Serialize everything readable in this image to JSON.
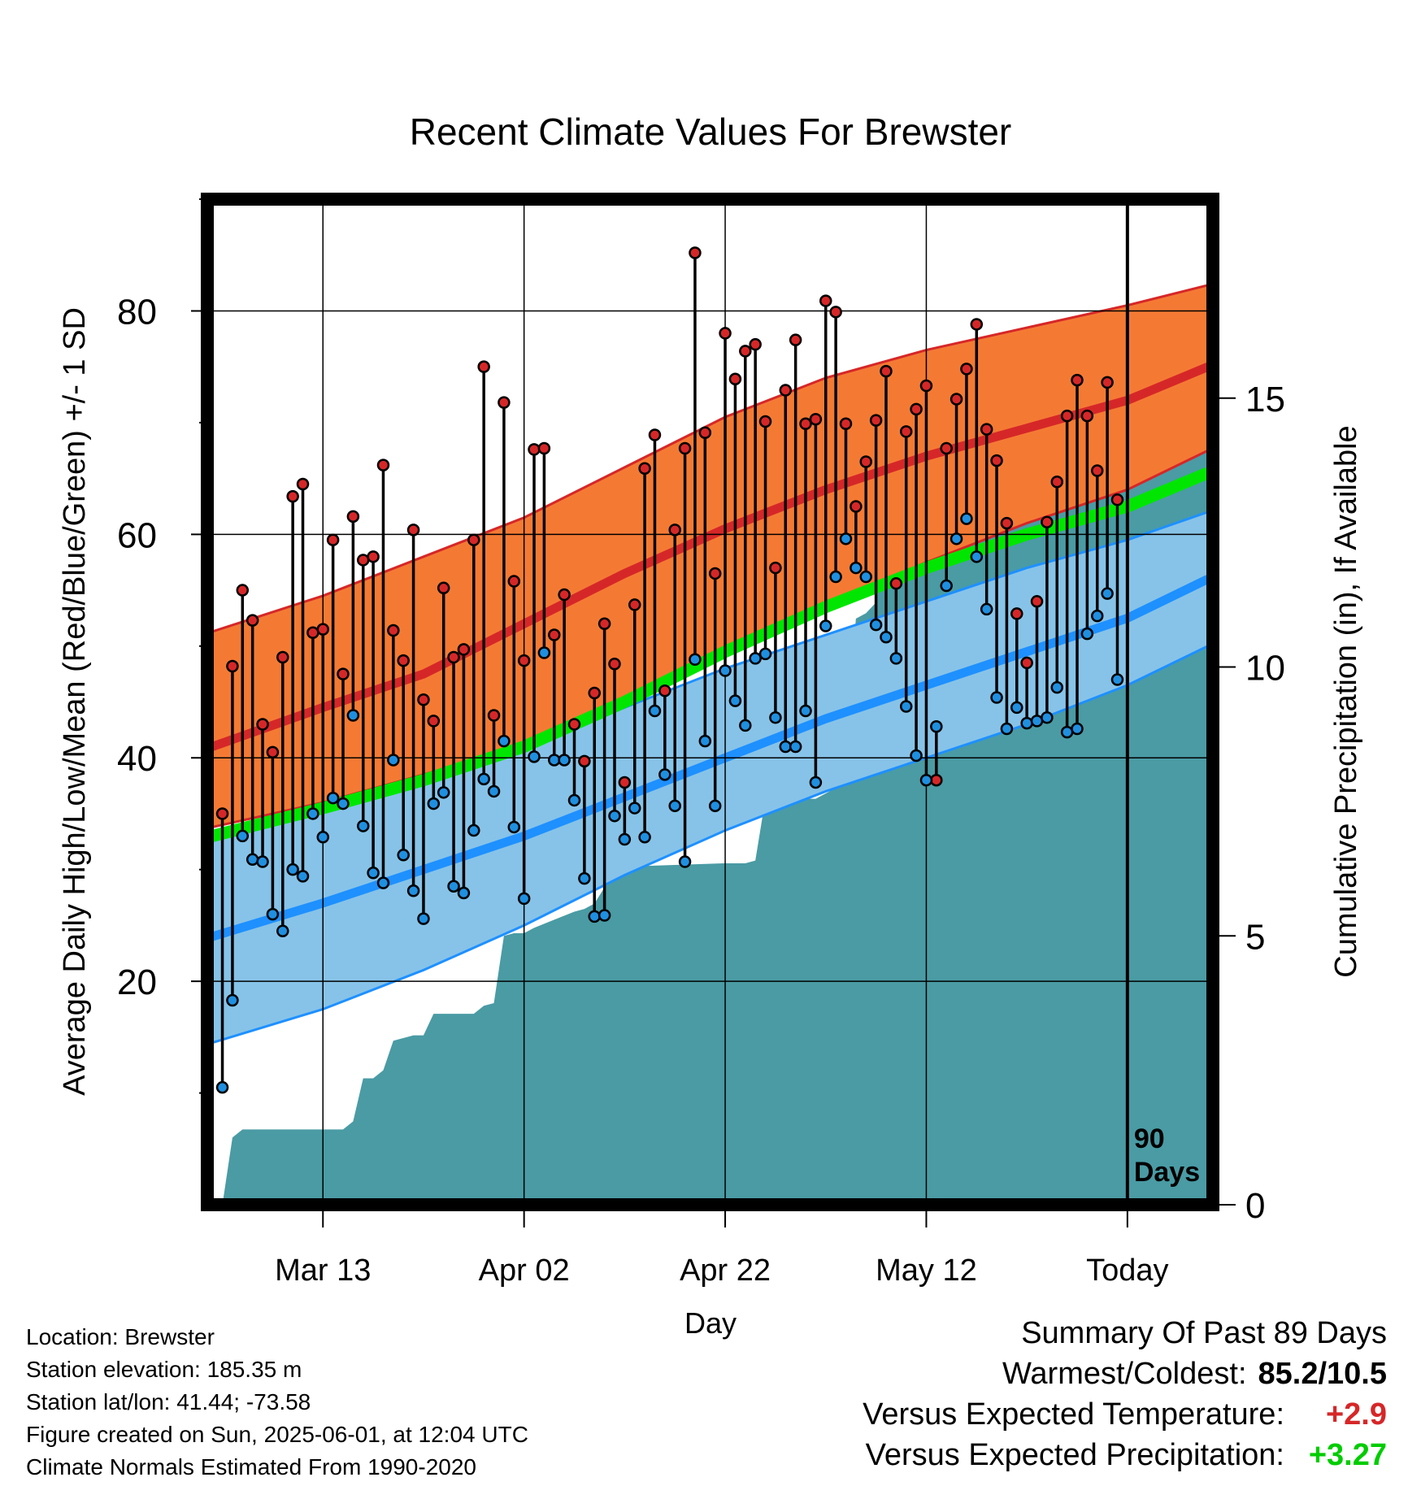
{
  "chart_data": {
    "type": "line",
    "title": "Recent Climate Values For Brewster",
    "xlabel": "Day",
    "ylabel_left": "Average Daily High/Low/Mean (Red/Blue/Green) +/- 1 SD",
    "ylabel_right": "Cumulative Precipitation (in), If Available",
    "x_tick_labels": [
      "Mar 13",
      "Apr 02",
      "Apr 22",
      "May 12",
      "Today"
    ],
    "x_tick_day_index": [
      10,
      30,
      50,
      70,
      90
    ],
    "today_day_index": 90,
    "x_range_day_index": [
      -1.5,
      98.5
    ],
    "left_ylim": [
      0,
      90
    ],
    "left_ticks": [
      20,
      40,
      60,
      80
    ],
    "right_ylim": [
      0,
      18.7
    ],
    "right_ticks": [
      0,
      5,
      10,
      15
    ],
    "today_label": [
      "90",
      "Days"
    ],
    "grid": true,
    "normals": {
      "day_index": [
        -1,
        10,
        20,
        30,
        40,
        50,
        60,
        70,
        80,
        90,
        98
      ],
      "high_mean": [
        41,
        44.5,
        47.5,
        52,
        56.5,
        60.5,
        64,
        67,
        69.5,
        72,
        75
      ],
      "high_plus_sd": [
        51.3,
        54.5,
        58,
        61.5,
        66,
        70.5,
        74,
        76.5,
        78.5,
        80.5,
        82.3
      ],
      "high_minus_sd": [
        33.8,
        36,
        38.5,
        41,
        45,
        49.5,
        53.5,
        57.5,
        61,
        64,
        67.5
      ],
      "mean": [
        33,
        35.5,
        38,
        41,
        45,
        49.5,
        53.5,
        57,
        60,
        62.5,
        65.5
      ],
      "low_mean": [
        24,
        27,
        30,
        33,
        36.5,
        40,
        43.5,
        46.5,
        49.5,
        52.5,
        56
      ],
      "low_plus_sd": [
        33,
        36,
        38.5,
        41,
        44.5,
        48,
        51,
        54,
        57,
        59.5,
        62
      ],
      "low_minus_sd": [
        14.5,
        17.5,
        21,
        25,
        29.5,
        33.5,
        37,
        40,
        43,
        46.5,
        50
      ]
    },
    "series": [
      {
        "name": "High",
        "values": [
          35,
          48.2,
          55,
          52.3,
          43,
          40.5,
          49,
          63.4,
          64.5,
          51.2,
          51.5,
          59.5,
          47.5,
          61.6,
          57.7,
          58,
          66.2,
          51.4,
          48.7,
          60.4,
          45.2,
          43.3,
          55.2,
          49,
          49.7,
          59.5,
          75,
          43.8,
          71.8,
          55.8,
          48.7,
          67.6,
          67.7,
          51,
          54.6,
          43,
          39.7,
          45.8,
          52,
          48.4,
          37.8,
          53.7,
          65.9,
          68.9,
          46,
          60.4,
          67.7,
          85.2,
          69.1,
          56.5,
          78,
          73.9,
          76.4,
          77,
          70.1,
          57,
          72.9,
          77.4,
          69.9,
          70.3,
          80.9,
          79.9,
          69.9,
          62.5,
          66.5,
          70.2,
          74.6,
          55.6,
          69.2,
          71.2,
          73.3,
          38,
          67.7,
          72.1,
          74.8,
          78.8,
          69.4,
          66.6,
          61,
          52.9,
          48.5,
          54,
          61.1,
          64.7,
          70.6,
          73.8,
          70.6,
          65.7,
          73.6,
          63.1
        ]
      },
      {
        "name": "Low",
        "values": [
          10.5,
          18.3,
          33,
          30.9,
          30.7,
          26,
          24.5,
          30,
          29.4,
          35,
          32.9,
          36.4,
          35.9,
          43.8,
          33.9,
          29.7,
          28.8,
          39.8,
          31.3,
          28.1,
          25.6,
          35.9,
          36.9,
          28.5,
          27.9,
          33.5,
          38.1,
          37,
          41.5,
          33.8,
          27.4,
          40.1,
          49.4,
          39.8,
          39.8,
          36.2,
          29.2,
          25.8,
          25.9,
          34.8,
          32.7,
          35.5,
          32.9,
          44.2,
          38.5,
          35.7,
          30.7,
          48.8,
          41.5,
          35.7,
          47.8,
          45.1,
          42.9,
          48.9,
          49.3,
          43.6,
          41,
          41,
          44.2,
          37.8,
          51.8,
          56.2,
          59.6,
          57,
          56.2,
          51.9,
          50.8,
          48.9,
          44.6,
          40.2,
          38,
          42.8,
          55.4,
          59.6,
          61.4,
          58,
          53.3,
          45.4,
          42.6,
          44.5,
          43.1,
          43.3,
          43.6,
          46.3,
          42.3,
          42.6,
          51.1,
          52.7,
          54.7,
          47
        ]
      }
    ],
    "precipitation_cumulative": {
      "day_index": [
        -1,
        0,
        1,
        2,
        12,
        13,
        14,
        15,
        16,
        17,
        19,
        20,
        21,
        25,
        26,
        27,
        28,
        29,
        30,
        31,
        33,
        35,
        36,
        37,
        39,
        40,
        42,
        50,
        51,
        52,
        53,
        54,
        59,
        60,
        61,
        62,
        63,
        64,
        65,
        66,
        67,
        68,
        69,
        70,
        71,
        72,
        73,
        74,
        75,
        76,
        77,
        78,
        79,
        80,
        81,
        82,
        83,
        84,
        86,
        87,
        88,
        89,
        90,
        98
      ],
      "values": [
        0,
        0,
        1.25,
        1.4,
        1.4,
        1.55,
        2.35,
        2.35,
        2.5,
        3.05,
        3.15,
        3.15,
        3.55,
        3.55,
        3.7,
        3.75,
        5.0,
        5.05,
        5.05,
        5.15,
        5.3,
        5.45,
        5.5,
        5.6,
        6.2,
        6.25,
        6.3,
        6.35,
        6.35,
        6.35,
        6.4,
        7.55,
        7.55,
        7.65,
        7.75,
        8.5,
        10.9,
        11.0,
        11.2,
        12.35,
        12.4,
        12.45,
        12.55,
        12.6,
        12.65,
        12.8,
        12.8,
        12.8,
        12.9,
        12.9,
        12.9,
        12.95,
        13.2,
        13.6,
        13.7,
        13.75,
        13.8,
        13.8,
        13.9,
        13.95,
        14.4,
        14.9,
        15.0,
        15.0
      ]
    },
    "colors": {
      "high_band": "#f47a34",
      "high_line": "#d62728",
      "mean_line": "#00e600",
      "low_band": "#87c3e8",
      "low_line": "#1e90ff",
      "precip_fill": "#4a9ba4",
      "high_marker": "#d62728",
      "low_marker": "#1f8fe0"
    }
  },
  "info": {
    "location": "Location: Brewster",
    "elevation": "Station elevation: 185.35 m",
    "latlon": "Station lat/lon: 41.44; -73.58",
    "created": "Figure created on Sun, 2025-06-01, at 12:04 UTC",
    "normals": "Climate Normals Estimated From 1990-2020"
  },
  "summary": {
    "title": "Summary Of Past 89 Days",
    "warm_cold_label": "Warmest/Coldest:",
    "warm_cold_value": "85.2/10.5",
    "temp_label": "Versus Expected Temperature:",
    "temp_value": "+2.9",
    "temp_color": "#d62728",
    "precip_label": "Versus Expected Precipitation:",
    "precip_value": "+3.27",
    "precip_color": "#00cc00"
  }
}
